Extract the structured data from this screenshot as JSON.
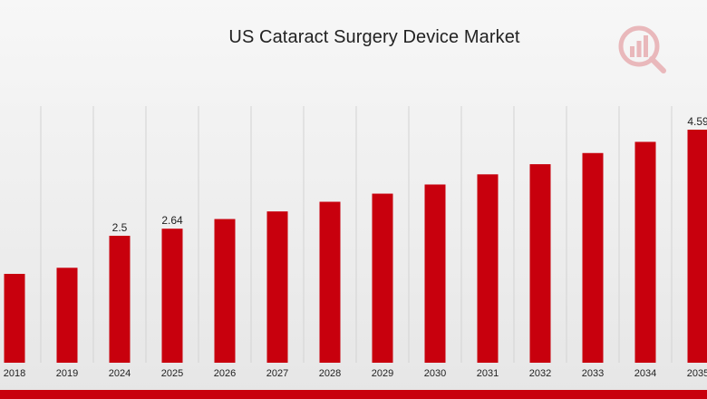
{
  "chart_data": {
    "type": "bar",
    "title": "US Cataract Surgery Device Market",
    "xlabel": "",
    "ylabel": "",
    "categories": [
      "2018",
      "2019",
      "2024",
      "2025",
      "2026",
      "2027",
      "2028",
      "2029",
      "2030",
      "2031",
      "2032",
      "2033",
      "2034",
      "2035"
    ],
    "values": [
      1.75,
      1.87,
      2.5,
      2.64,
      2.83,
      2.98,
      3.17,
      3.33,
      3.51,
      3.71,
      3.91,
      4.13,
      4.35,
      4.59
    ],
    "data_labels": {
      "2024": "2.5",
      "2025": "2.64",
      "2035": "4.59"
    },
    "ylim": [
      0,
      5.1
    ],
    "grid": "vertical",
    "legend": "none",
    "bar_color": "#c8000d"
  },
  "colors": {
    "bar": "#c8000d",
    "gridline": "#d3d3d3",
    "band": "#c8000d"
  },
  "logo": {
    "icon": "market-research-logo-icon"
  }
}
